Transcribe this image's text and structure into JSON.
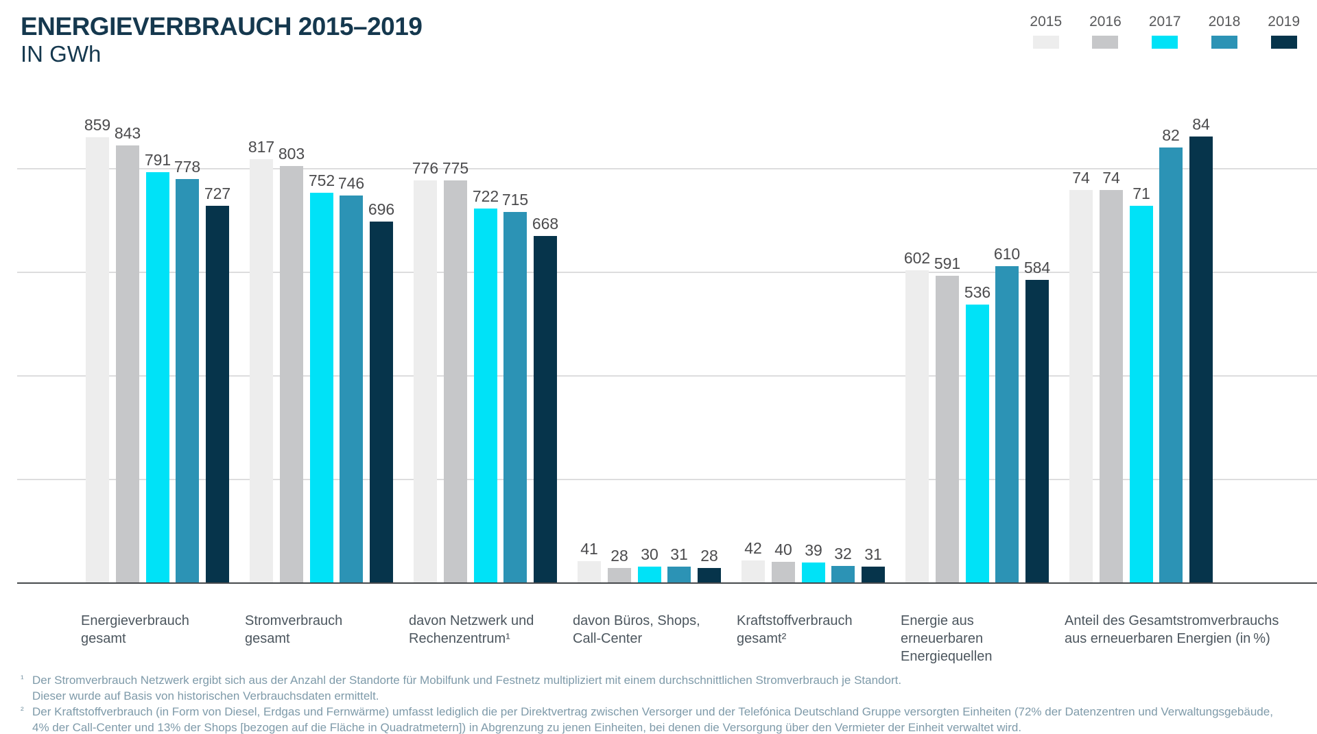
{
  "title": "ENERGIEVERBRAUCH 2015–2019",
  "subtitle": "IN GWh",
  "legend": {
    "years": [
      {
        "label": "2015",
        "color": "#EDEDED"
      },
      {
        "label": "2016",
        "color": "#C6C7C9"
      },
      {
        "label": "2017",
        "color": "#00E2F7"
      },
      {
        "label": "2018",
        "color": "#2C93B5"
      },
      {
        "label": "2019",
        "color": "#06344B"
      }
    ]
  },
  "chart_data": {
    "type": "bar",
    "title": "ENERGIEVERBRAUCH 2015–2019",
    "unit_label": "IN GWh",
    "grid": true,
    "legend_position": "top-right",
    "ylim": [
      0,
      900
    ],
    "gridline_values": [
      200,
      400,
      600,
      800
    ],
    "series_labels": [
      "2015",
      "2016",
      "2017",
      "2018",
      "2019"
    ],
    "series_colors": [
      "#EDEDED",
      "#C6C7C9",
      "#00E2F7",
      "#2C93B5",
      "#06344B"
    ],
    "groups": [
      {
        "label": "Energieverbrauch\ngesamt",
        "values": [
          859,
          843,
          791,
          778,
          727
        ]
      },
      {
        "label": "Stromverbrauch\ngesamt",
        "values": [
          817,
          803,
          752,
          746,
          696
        ]
      },
      {
        "label": "davon Netzwerk und\nRechenzentrum¹",
        "values": [
          776,
          775,
          722,
          715,
          668
        ]
      },
      {
        "label": "davon Büros, Shops,\nCall-Center",
        "values": [
          41,
          28,
          30,
          31,
          28
        ]
      },
      {
        "label": "Kraftstoffverbrauch\ngesamt²",
        "values": [
          42,
          40,
          39,
          32,
          31
        ]
      },
      {
        "label": "Energie aus\nerneuerbaren\nEnergiequellen",
        "values": [
          602,
          591,
          536,
          610,
          584
        ]
      },
      {
        "label": "Anteil des Gesamtstromverbrauchs\naus erneuerbaren Energien (in %)",
        "values": [
          74,
          74,
          71,
          82,
          84
        ],
        "display_scale": 10.24
      }
    ]
  },
  "footnotes": [
    {
      "marker": "¹",
      "lines": [
        "Der Stromverbrauch Netzwerk ergibt sich aus der Anzahl der Standorte für Mobilfunk und Festnetz multipliziert mit einem durchschnittlichen Stromverbrauch je Standort.",
        "Dieser wurde auf Basis von historischen Verbrauchsdaten ermittelt."
      ]
    },
    {
      "marker": "²",
      "lines": [
        "Der Kraftstoffverbrauch (in Form von Diesel, Erdgas und Fernwärme) umfasst lediglich die per Direktvertrag zwischen Versorger und der Telefónica Deutschland Gruppe versorgten Einheiten (72% der Datenzentren und Verwaltungsgebäude,",
        "4% der Call-Center und 13% der Shops [bezogen auf die Fläche in Quadratmetern]) in Abgrenzung zu jenen Einheiten, bei denen die Versorgung über den Vermieter der Einheit verwaltet wird."
      ]
    }
  ]
}
